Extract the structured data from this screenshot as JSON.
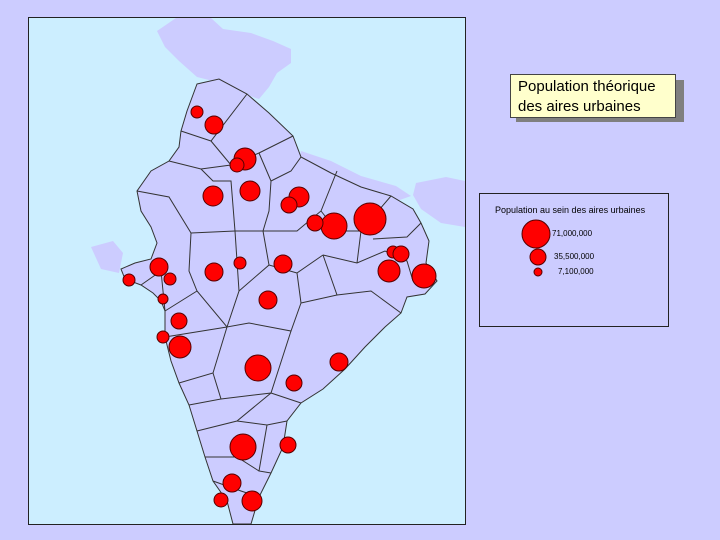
{
  "title": {
    "line1": "Population théorique",
    "line2": "des aires urbaines"
  },
  "legend": {
    "title": "Population au sein des aires urbaines",
    "items": [
      {
        "label": "71,000,000",
        "value": 71000000
      },
      {
        "label": "35,500,000",
        "value": 35500000
      },
      {
        "label": "7,100,000",
        "value": 7100000
      }
    ]
  },
  "colors": {
    "background": "#ccccff",
    "sea": "#cceeff",
    "land": "#ccccff",
    "circle_fill": "#ff0000",
    "circle_stroke": "#550000",
    "cell_border": "#333333"
  },
  "symbol": "proportional-circle"
}
